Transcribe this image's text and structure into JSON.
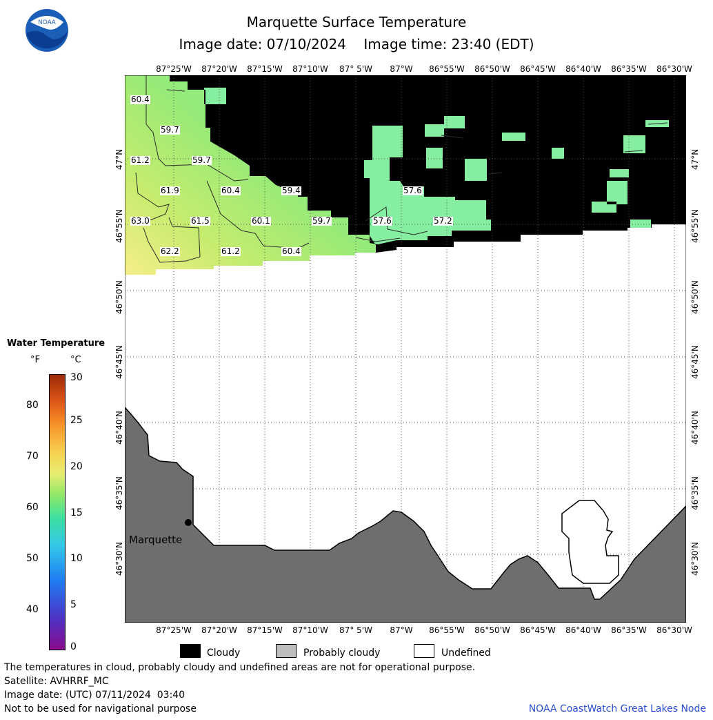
{
  "header": {
    "title": "Marquette Surface Temperature",
    "subtitle": "Image date: 07/10/2024    Image time: 23:40 (EDT)",
    "logo_text": "NOAA"
  },
  "map": {
    "lon_ticks": [
      "87°25'W",
      "87°20'W",
      "87°15'W",
      "87°10'W",
      "87° 5'W",
      "87°W",
      "86°55'W",
      "86°50'W",
      "86°45'W",
      "86°40'W",
      "86°35'W",
      "86°30'W"
    ],
    "lat_ticks": [
      "47°N",
      "46°55'N",
      "46°50'N",
      "46°45'N",
      "46°40'N",
      "46°35'N",
      "46°30'N"
    ],
    "city_label": "Marquette",
    "colors": {
      "cloudy": "#000000",
      "probably_cloudy": "#bdbdbd",
      "undefined": "#ffffff",
      "land": "#6e6e6e",
      "grid": "#555555"
    },
    "temperature_labels": [
      {
        "text": "60.4"
      },
      {
        "text": "59.7"
      },
      {
        "text": "61.2"
      },
      {
        "text": "59.7"
      },
      {
        "text": "61.9"
      },
      {
        "text": "60.4"
      },
      {
        "text": "59.4"
      },
      {
        "text": "57.6"
      },
      {
        "text": "63.0"
      },
      {
        "text": "61.5"
      },
      {
        "text": "60.1"
      },
      {
        "text": "59.7"
      },
      {
        "text": "57.6"
      },
      {
        "text": "57.2"
      },
      {
        "text": "62.2"
      },
      {
        "text": "61.2"
      },
      {
        "text": "60.4"
      }
    ]
  },
  "colorbar": {
    "title": "Water Temperature",
    "unit_f": "°F",
    "unit_c": "°C",
    "f_ticks": [
      "80",
      "70",
      "60",
      "50",
      "40"
    ],
    "c_ticks": [
      "30",
      "25",
      "20",
      "15",
      "10",
      "5",
      "0"
    ]
  },
  "legend": {
    "cloudy": "Cloudy",
    "probably_cloudy": "Probably cloudy",
    "undefined": "Undefined"
  },
  "footer": {
    "line1": "The temperatures in cloud, probably cloudy and undefined areas are not for operational purpose.",
    "line2": "Satellite: AVHRRF_MC",
    "line3": "Image date: (UTC) 07/11/2024  03:40",
    "line4": "Not to be used for navigational purpose",
    "credit": "NOAA CoastWatch Great Lakes Node"
  }
}
